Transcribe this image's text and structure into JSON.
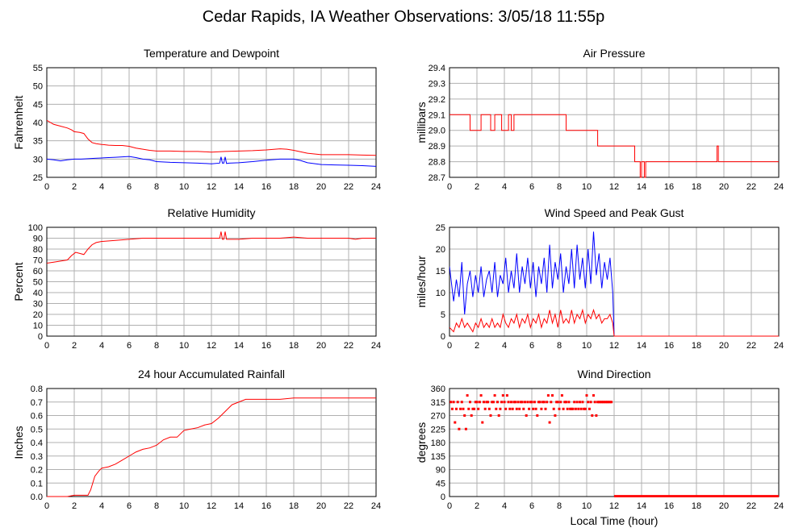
{
  "page": {
    "title": "Cedar Rapids, IA Weather Observations: 3/05/18 11:55p",
    "bottom_xlabel": "Local Time (hour)"
  },
  "chart_data": [
    {
      "id": "temp",
      "type": "line",
      "title": "Temperature and Dewpoint",
      "ylabel": "Fahrenheit",
      "xlim": [
        0,
        24
      ],
      "ylim": [
        25,
        55
      ],
      "yticks": [
        25,
        30,
        35,
        40,
        45,
        50,
        55
      ],
      "xticks": [
        0,
        2,
        4,
        6,
        8,
        10,
        12,
        14,
        16,
        18,
        20,
        22,
        24
      ],
      "grid": true,
      "series": [
        {
          "color": "#ff0000",
          "step": false,
          "x": [
            0,
            0.5,
            1,
            1.5,
            1.8,
            2.0,
            2.4,
            2.7,
            3.0,
            3.3,
            3.6,
            4,
            4.5,
            5,
            5.5,
            6,
            6.5,
            7,
            7.5,
            8,
            9,
            10,
            11,
            12,
            13,
            14,
            15,
            16,
            17,
            17.5,
            18,
            19,
            20,
            21,
            22,
            23,
            24
          ],
          "y": [
            40.6,
            39.5,
            39,
            38.5,
            38,
            37.5,
            37.3,
            37,
            35.5,
            34.5,
            34.2,
            34,
            33.8,
            33.7,
            33.7,
            33.5,
            33,
            32.7,
            32.4,
            32.2,
            32.2,
            32.1,
            32.1,
            31.9,
            32.1,
            32.2,
            32.3,
            32.5,
            32.8,
            32.7,
            32.4,
            31.6,
            31.2,
            31.2,
            31.2,
            31.1,
            31
          ]
        },
        {
          "color": "#0000ff",
          "step": false,
          "x": [
            0,
            0.5,
            1,
            1.5,
            2,
            2.5,
            3,
            3.5,
            4,
            4.5,
            5,
            5.5,
            6,
            6.5,
            7,
            7.5,
            8,
            9,
            10,
            11,
            12,
            12.6,
            12.7,
            12.8,
            12.9,
            13.0,
            13.1,
            13.3,
            14,
            15,
            16,
            17,
            18,
            18.5,
            19,
            20,
            21,
            22,
            23,
            24
          ],
          "y": [
            30,
            29.8,
            29.5,
            29.8,
            30,
            30,
            30.1,
            30.2,
            30.3,
            30.4,
            30.5,
            30.6,
            30.7,
            30.4,
            30,
            29.8,
            29.3,
            29.1,
            29,
            28.9,
            28.7,
            28.9,
            30.6,
            28.9,
            28.9,
            30.6,
            28.8,
            28.9,
            29,
            29.3,
            29.7,
            30,
            30,
            29.6,
            29,
            28.5,
            28.4,
            28.3,
            28.2,
            28
          ]
        }
      ]
    },
    {
      "id": "pressure",
      "type": "line",
      "title": "Air Pressure",
      "ylabel": "millibars",
      "xlim": [
        0,
        24
      ],
      "ylim": [
        28.7,
        29.4
      ],
      "yticks": [
        28.7,
        28.8,
        28.9,
        29.0,
        29.1,
        29.2,
        29.3,
        29.4
      ],
      "ytick_labels": [
        "28.7",
        "28.8",
        "28.9",
        "29.0",
        "29.1",
        "29.2",
        "29.3",
        "29.4"
      ],
      "xticks": [
        0,
        2,
        4,
        6,
        8,
        10,
        12,
        14,
        16,
        18,
        20,
        22,
        24
      ],
      "grid": true,
      "series": [
        {
          "color": "#ff0000",
          "step": true,
          "x": [
            0,
            1.5,
            2.3,
            3.0,
            3.3,
            3.8,
            4.3,
            4.5,
            4.7,
            8.5,
            10.8,
            13.5,
            13.6,
            13.9,
            14.0,
            14.2,
            14.3,
            14.5,
            19.5,
            19.6,
            19.7,
            24
          ],
          "y": [
            29.1,
            29.0,
            29.1,
            29.0,
            29.1,
            29.0,
            29.1,
            29.0,
            29.1,
            29.0,
            28.9,
            28.8,
            28.8,
            28.7,
            28.8,
            28.7,
            28.8,
            28.8,
            28.9,
            28.8,
            28.8,
            28.8
          ]
        }
      ]
    },
    {
      "id": "humidity",
      "type": "line",
      "title": "Relative Humidity",
      "ylabel": "Percent",
      "xlim": [
        0,
        24
      ],
      "ylim": [
        0,
        100
      ],
      "yticks": [
        0,
        10,
        20,
        30,
        40,
        50,
        60,
        70,
        80,
        90,
        100
      ],
      "xticks": [
        0,
        2,
        4,
        6,
        8,
        10,
        12,
        14,
        16,
        18,
        20,
        22,
        24
      ],
      "grid": true,
      "series": [
        {
          "color": "#ff0000",
          "step": false,
          "x": [
            0,
            0.5,
            1,
            1.5,
            1.8,
            2.1,
            2.4,
            2.7,
            3.0,
            3.3,
            3.6,
            4,
            5,
            6,
            7,
            8,
            9,
            10,
            11,
            12,
            12.6,
            12.7,
            12.8,
            12.9,
            13.0,
            13.1,
            13.3,
            14,
            15,
            16,
            17,
            18,
            19,
            20,
            21,
            22,
            22.5,
            23,
            24
          ],
          "y": [
            67,
            68,
            69,
            70,
            74,
            77,
            76,
            75,
            80,
            84,
            86,
            87,
            88,
            89,
            90,
            90,
            90,
            90,
            90,
            90,
            90,
            96,
            89,
            89,
            96,
            89,
            89,
            89,
            90,
            90,
            90,
            91,
            90,
            90,
            90,
            90,
            89,
            90,
            90
          ]
        }
      ]
    },
    {
      "id": "wind",
      "type": "line",
      "title": "Wind Speed and Peak Gust",
      "ylabel": "miles/hour",
      "xlim": [
        0,
        24
      ],
      "ylim": [
        0,
        25
      ],
      "yticks": [
        0,
        5,
        10,
        15,
        20,
        25
      ],
      "xticks": [
        0,
        2,
        4,
        6,
        8,
        10,
        12,
        14,
        16,
        18,
        20,
        22,
        24
      ],
      "grid": true,
      "series": [
        {
          "color": "#0000ff",
          "step": false,
          "x": [
            0,
            0.3,
            0.5,
            0.7,
            0.9,
            1.1,
            1.3,
            1.5,
            1.7,
            1.9,
            2.1,
            2.3,
            2.5,
            2.7,
            2.9,
            3.1,
            3.3,
            3.5,
            3.7,
            3.9,
            4.1,
            4.3,
            4.5,
            4.7,
            4.9,
            5.1,
            5.3,
            5.5,
            5.7,
            5.9,
            6.1,
            6.3,
            6.5,
            6.7,
            6.9,
            7.1,
            7.3,
            7.5,
            7.7,
            7.9,
            8.1,
            8.3,
            8.5,
            8.7,
            8.9,
            9.1,
            9.3,
            9.5,
            9.7,
            9.9,
            10.1,
            10.3,
            10.5,
            10.7,
            10.9,
            11.1,
            11.3,
            11.5,
            11.7,
            11.9,
            12.0,
            24
          ],
          "y": [
            16,
            8,
            13,
            9,
            17,
            5,
            12,
            15,
            9,
            14,
            10,
            16,
            9,
            13,
            15,
            10,
            17,
            9,
            14,
            12,
            18,
            10,
            15,
            11,
            19,
            10,
            16,
            12,
            18,
            11,
            17,
            9,
            16,
            12,
            18,
            10,
            21,
            11,
            17,
            13,
            19,
            10,
            16,
            12,
            20,
            11,
            21,
            13,
            18,
            11,
            20,
            12,
            24,
            14,
            19,
            11,
            17,
            13,
            18,
            10,
            0,
            0
          ]
        },
        {
          "color": "#ff0000",
          "step": false,
          "x": [
            0,
            0.3,
            0.5,
            0.7,
            0.9,
            1.1,
            1.3,
            1.5,
            1.7,
            1.9,
            2.1,
            2.3,
            2.5,
            2.7,
            2.9,
            3.1,
            3.3,
            3.5,
            3.7,
            3.9,
            4.1,
            4.3,
            4.5,
            4.7,
            4.9,
            5.1,
            5.3,
            5.5,
            5.7,
            5.9,
            6.1,
            6.3,
            6.5,
            6.7,
            6.9,
            7.1,
            7.3,
            7.5,
            7.7,
            7.9,
            8.1,
            8.3,
            8.5,
            8.7,
            8.9,
            9.1,
            9.3,
            9.5,
            9.7,
            9.9,
            10.1,
            10.3,
            10.5,
            10.7,
            10.9,
            11.1,
            11.3,
            11.5,
            11.7,
            11.9,
            12.0,
            24
          ],
          "y": [
            2,
            1,
            3,
            2,
            4,
            2,
            3,
            2,
            1,
            3,
            2,
            4,
            2,
            3,
            2,
            4,
            2,
            3,
            2,
            5,
            3,
            2,
            4,
            3,
            5,
            2,
            4,
            3,
            5,
            2,
            4,
            3,
            5,
            2,
            4,
            3,
            6,
            3,
            5,
            2,
            6,
            3,
            4,
            3,
            6,
            3,
            5,
            4,
            6,
            3,
            5,
            4,
            6,
            4,
            5,
            3,
            4,
            4,
            5,
            3,
            0,
            0
          ]
        }
      ]
    },
    {
      "id": "rainfall",
      "type": "line",
      "title": "24 hour Accumulated Rainfall",
      "ylabel": "Inches",
      "xlim": [
        0,
        24
      ],
      "ylim": [
        0,
        0.8
      ],
      "yticks": [
        0,
        0.1,
        0.2,
        0.3,
        0.4,
        0.5,
        0.6,
        0.7,
        0.8
      ],
      "ytick_labels": [
        "0.0",
        "0.1",
        "0.2",
        "0.3",
        "0.4",
        "0.5",
        "0.6",
        "0.7",
        "0.8"
      ],
      "xticks": [
        0,
        2,
        4,
        6,
        8,
        10,
        12,
        14,
        16,
        18,
        20,
        22,
        24
      ],
      "grid": true,
      "series": [
        {
          "color": "#ff0000",
          "step": false,
          "x": [
            0,
            1.5,
            2.0,
            3.0,
            3.2,
            3.5,
            3.8,
            4.0,
            4.5,
            5.0,
            5.5,
            6.0,
            6.5,
            7.0,
            7.5,
            8.0,
            8.5,
            9.0,
            9.5,
            10.0,
            10.5,
            11.0,
            11.5,
            12.0,
            12.5,
            13.0,
            13.5,
            14.0,
            14.5,
            15,
            16,
            17,
            18,
            19,
            20,
            21,
            22,
            23,
            24
          ],
          "y": [
            0,
            0,
            0.01,
            0.01,
            0.05,
            0.15,
            0.19,
            0.21,
            0.22,
            0.24,
            0.27,
            0.3,
            0.33,
            0.35,
            0.36,
            0.38,
            0.42,
            0.44,
            0.44,
            0.49,
            0.5,
            0.51,
            0.53,
            0.54,
            0.58,
            0.63,
            0.68,
            0.7,
            0.72,
            0.72,
            0.72,
            0.72,
            0.73,
            0.73,
            0.73,
            0.73,
            0.73,
            0.73,
            0.73
          ]
        }
      ]
    },
    {
      "id": "direction",
      "type": "scatter",
      "title": "Wind Direction",
      "ylabel": "degrees",
      "xlabel": "Local Time (hour)",
      "xlim": [
        0,
        24
      ],
      "ylim": [
        0,
        360
      ],
      "yticks": [
        0,
        45,
        90,
        135,
        180,
        225,
        270,
        315,
        360
      ],
      "xticks": [
        0,
        2,
        4,
        6,
        8,
        10,
        12,
        14,
        16,
        18,
        20,
        22,
        24
      ],
      "grid": true,
      "series": [
        {
          "color": "#ff0000",
          "x": [
            0.1,
            0.2,
            0.3,
            0.4,
            0.5,
            0.6,
            0.7,
            0.8,
            0.9,
            1.0,
            1.1,
            1.2,
            1.3,
            1.4,
            1.5,
            1.6,
            1.7,
            1.8,
            1.9,
            2.0,
            2.1,
            2.2,
            2.3,
            2.4,
            2.5,
            2.6,
            2.7,
            2.8,
            2.9,
            3.0,
            3.1,
            3.2,
            3.3,
            3.4,
            3.5,
            3.6,
            3.7,
            3.8,
            3.9,
            4.0,
            4.1,
            4.2,
            4.3,
            4.4,
            4.5,
            4.6,
            4.7,
            4.8,
            4.9,
            5.0,
            5.1,
            5.2,
            5.3,
            5.4,
            5.5,
            5.6,
            5.7,
            5.8,
            5.9,
            6.0,
            6.1,
            6.2,
            6.3,
            6.4,
            6.5,
            6.6,
            6.7,
            6.8,
            6.9,
            7.0,
            7.1,
            7.2,
            7.3,
            7.4,
            7.5,
            7.6,
            7.7,
            7.8,
            7.9,
            8.0,
            8.1,
            8.2,
            8.3,
            8.4,
            8.5,
            8.6,
            8.7,
            8.8,
            8.9,
            9.0,
            9.1,
            9.2,
            9.3,
            9.4,
            9.5,
            9.6,
            9.7,
            9.8,
            9.9,
            10.0,
            10.1,
            10.2,
            10.3,
            10.4,
            10.5,
            10.6,
            10.7,
            10.8,
            10.9,
            11.0,
            11.1,
            11.2,
            11.3,
            11.4,
            11.5,
            11.6,
            11.7,
            11.8
          ],
          "y": [
            315,
            292,
            315,
            247,
            292,
            315,
            225,
            292,
            315,
            292,
            270,
            225,
            337,
            292,
            315,
            270,
            292,
            292,
            315,
            315,
            292,
            315,
            337,
            247,
            315,
            292,
            315,
            315,
            292,
            270,
            315,
            315,
            337,
            292,
            315,
            270,
            292,
            315,
            337,
            315,
            292,
            337,
            315,
            292,
            315,
            292,
            315,
            315,
            292,
            315,
            292,
            315,
            315,
            292,
            315,
            270,
            315,
            292,
            315,
            315,
            292,
            315,
            292,
            270,
            315,
            315,
            292,
            315,
            315,
            292,
            315,
            337,
            247,
            315,
            337,
            292,
            270,
            315,
            315,
            292,
            315,
            337,
            292,
            315,
            315,
            292,
            315,
            292,
            292,
            292,
            315,
            292,
            315,
            292,
            315,
            292,
            315,
            292,
            292,
            337,
            315,
            292,
            315,
            270,
            337,
            315,
            270,
            315,
            315,
            315,
            315,
            315,
            315,
            315,
            315,
            315,
            315,
            315
          ]
        },
        {
          "color": "#ff0000",
          "type": "line",
          "x": [
            12,
            24
          ],
          "y": [
            1,
            1
          ]
        }
      ]
    }
  ]
}
